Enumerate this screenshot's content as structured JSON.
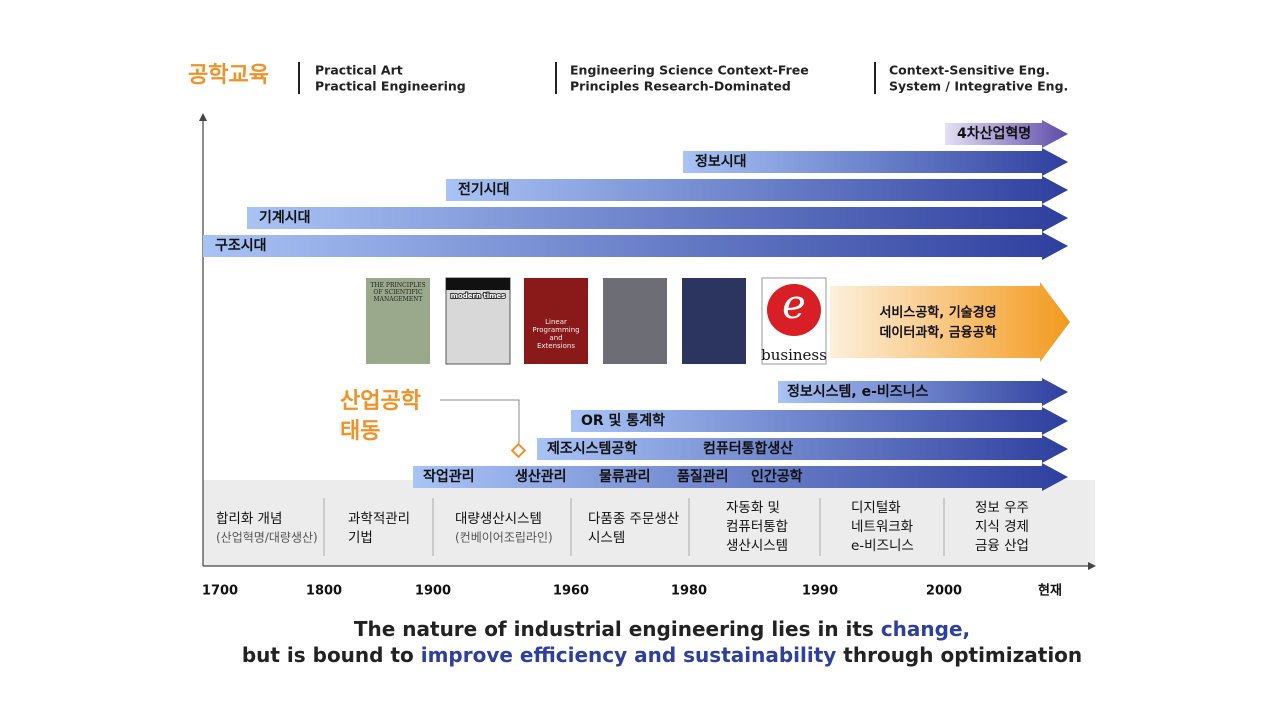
{
  "header": {
    "title": "공학교육",
    "columns": [
      [
        "Practical Art",
        "Practical Engineering"
      ],
      [
        "Engineering Science Context-Free",
        "Principles Research-Dominated"
      ],
      [
        "Context-Sensitive Eng.",
        "System / Integrative Eng."
      ]
    ]
  },
  "eras": [
    "4차산업혁명",
    "정보시대",
    "전기시대",
    "기계시대",
    "구조시대"
  ],
  "covers": {
    "taylor": "THE PRINCIPLES OF SCIENTIFIC MANAGEMENT",
    "chaplin": "modern times",
    "dantzig": "Linear Programming and Extensions",
    "ebiz_letter": "e",
    "ebiz": "business"
  },
  "service": [
    "서비스공학, 기술경영",
    "데이터과학, 금융공학"
  ],
  "ie_title": [
    "산업공학",
    "태동"
  ],
  "ie_arrows": [
    [
      "정보시스템, e-비즈니스"
    ],
    [
      "OR 및 통계학"
    ],
    [
      "제조시스템공학",
      "컴퓨터통합생산"
    ],
    [
      "작업관리",
      "생산관리",
      "물류관리",
      "품질관리",
      "인간공학"
    ]
  ],
  "periods": [
    [
      "합리화 개념",
      "(산업혁명/대량생산)"
    ],
    [
      "과학적관리",
      "기법"
    ],
    [
      "대량생산시스템",
      "(컨베이어조립라인)"
    ],
    [
      "다품종 주문생산",
      "시스템"
    ],
    [
      "자동화 및",
      "컴퓨터통합",
      "생산시스템"
    ],
    [
      "디지털화",
      "네트워크화",
      "e-비즈니스"
    ],
    [
      "정보 우주",
      "지식 경제",
      "금융 산업"
    ]
  ],
  "axis": [
    "1700",
    "1800",
    "1900",
    "1960",
    "1980",
    "1990",
    "2000",
    "현재"
  ],
  "footer": [
    [
      "The nature of industrial engineering lies in its ",
      "change,"
    ],
    [
      "but is bound to ",
      "improve efficiency and sustainability",
      " through optimization"
    ]
  ]
}
